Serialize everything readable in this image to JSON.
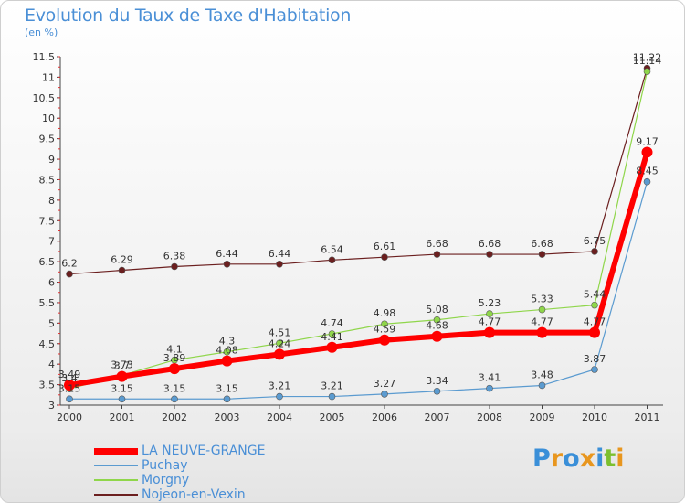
{
  "header": {
    "title": "Evolution du Taux de Taxe d'Habitation",
    "subtitle": "(en %)"
  },
  "logo": {
    "text": "Proxiti",
    "letters": [
      "P",
      "r",
      "o",
      "x",
      "i",
      "t",
      "i"
    ],
    "colors": [
      "#3a8fd8",
      "#e8961e",
      "#3a8fd8",
      "#e8961e",
      "#3a8fd8",
      "#7cbf2f",
      "#e8961e"
    ]
  },
  "chart_data": {
    "type": "line",
    "title": "Evolution du Taux de Taxe d'Habitation",
    "ylabel": "(en %)",
    "xlabel": "",
    "ylim": [
      3,
      11.5
    ],
    "grid": false,
    "legend_position": "bottom-left",
    "x": [
      "2000",
      "2001",
      "2002",
      "2003",
      "2004",
      "2005",
      "2006",
      "2007",
      "2008",
      "2009",
      "2010",
      "2011"
    ],
    "y_ticks": [
      "3",
      "3.5",
      "4",
      "4.5",
      "5",
      "5.5",
      "6",
      "6.5",
      "7",
      "7.5",
      "8",
      "8.5",
      "9",
      "9.5",
      "10",
      "10.5",
      "11",
      "11.5"
    ],
    "series": [
      {
        "name": "Nojeon-en-Vexin",
        "color": "#6b1f1f",
        "width": 1.2,
        "marker_r": 3.5,
        "values": [
          6.2,
          6.29,
          6.38,
          6.44,
          6.44,
          6.54,
          6.61,
          6.68,
          6.68,
          6.68,
          6.75,
          11.22
        ],
        "labels": [
          "6.2",
          "6.29",
          "6.38",
          "6.44",
          "6.44",
          "6.54",
          "6.61",
          "6.68",
          "6.68",
          "6.68",
          "6.75",
          "11.22"
        ]
      },
      {
        "name": "Puchay",
        "color": "#5b9bd0",
        "width": 1.2,
        "marker_r": 3.5,
        "values": [
          3.15,
          3.15,
          3.15,
          3.15,
          3.21,
          3.21,
          3.27,
          3.34,
          3.41,
          3.48,
          3.87,
          8.45
        ],
        "labels": [
          "3.15",
          "3.15",
          "3.15",
          "3.15",
          "3.21",
          "3.21",
          "3.27",
          "3.34",
          "3.41",
          "3.48",
          "3.87",
          "8.45"
        ]
      },
      {
        "name": "Morgny",
        "color": "#8fd64a",
        "width": 1.2,
        "marker_r": 3.5,
        "values": [
          3.4,
          3.73,
          4.1,
          4.3,
          4.51,
          4.74,
          4.98,
          5.08,
          5.23,
          5.33,
          5.44,
          11.14
        ],
        "labels": [
          "3.4",
          "3.73",
          "4.1",
          "4.3",
          "4.51",
          "4.74",
          "4.98",
          "5.08",
          "5.23",
          "5.33",
          "5.44",
          "11.14"
        ]
      },
      {
        "name": "LA NEUVE-GRANGE",
        "color": "#ff0000",
        "width": 6,
        "marker_r": 6,
        "values": [
          3.49,
          3.7,
          3.89,
          4.08,
          4.24,
          4.41,
          4.59,
          4.68,
          4.77,
          4.77,
          4.77,
          9.17
        ],
        "labels": [
          "3.49",
          "3.7",
          "3.89",
          "4.08",
          "4.24",
          "4.41",
          "4.59",
          "4.68",
          "4.77",
          "4.77",
          "4.77",
          "9.17"
        ]
      }
    ]
  },
  "legend": [
    {
      "name": "LA NEUVE-GRANGE",
      "color": "#ff0000",
      "thickness": 7
    },
    {
      "name": "Puchay",
      "color": "#5b9bd0",
      "thickness": 2
    },
    {
      "name": "Morgny",
      "color": "#8fd64a",
      "thickness": 2
    },
    {
      "name": "Nojeon-en-Vexin",
      "color": "#6b1f1f",
      "thickness": 2
    }
  ]
}
